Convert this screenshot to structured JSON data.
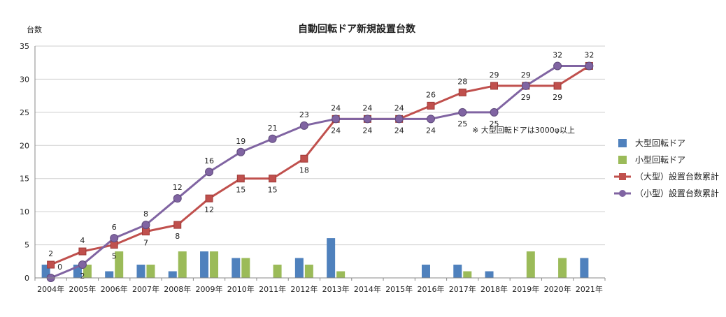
{
  "chart_data": {
    "type": "bar+line",
    "title": "自動回転ドア新規設置台数",
    "ylabel": "台数",
    "ylim": [
      0,
      35
    ],
    "yticks": [
      0,
      5,
      10,
      15,
      20,
      25,
      30,
      35
    ],
    "grid": true,
    "legend_position": "right",
    "note": "※ 大型回転ドアは3000φ以上",
    "categories": [
      "2004年",
      "2005年",
      "2006年",
      "2007年",
      "2008年",
      "2009年",
      "2010年",
      "2011年",
      "2012年",
      "2013年",
      "2014年",
      "2015年",
      "2016年",
      "2017年",
      "2018年",
      "2019年",
      "2020年",
      "2021年"
    ],
    "series": [
      {
        "name": "大型回転ドア",
        "kind": "bar",
        "color": "#4f81bd",
        "values": [
          2,
          2,
          1,
          2,
          1,
          4,
          3,
          0,
          3,
          6,
          0,
          0,
          2,
          2,
          1,
          0,
          0,
          3
        ]
      },
      {
        "name": "小型回転ドア",
        "kind": "bar",
        "color": "#9bbb59",
        "values": [
          0,
          2,
          4,
          2,
          4,
          4,
          3,
          2,
          2,
          1,
          0,
          0,
          0,
          1,
          0,
          4,
          3,
          0
        ]
      },
      {
        "name": "（大型）設置台数累計",
        "kind": "line",
        "marker": "square",
        "color": "#c0504d",
        "values": [
          2,
          4,
          5,
          7,
          8,
          12,
          15,
          15,
          18,
          24,
          24,
          24,
          26,
          28,
          29,
          29,
          29,
          32
        ]
      },
      {
        "name": "（小型）設置台数累計",
        "kind": "line",
        "marker": "circle",
        "color": "#8064a2",
        "values": [
          0,
          2,
          6,
          8,
          12,
          16,
          19,
          21,
          23,
          24,
          24,
          24,
          24,
          25,
          25,
          29,
          32,
          32
        ]
      }
    ]
  }
}
